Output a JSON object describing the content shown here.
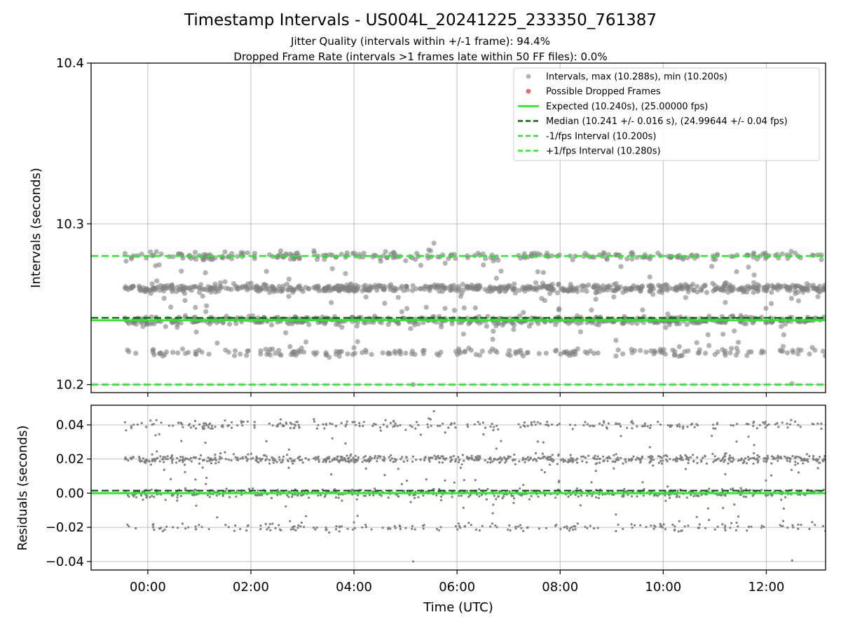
{
  "figure": {
    "title": "Timestamp Intervals - US004L_20241225_233350_761387",
    "subtitle_lines": [
      "Jitter Quality (intervals within +/-1 frame): 94.4%",
      "Dropped Frame Rate (intervals >1 frames late within 50 FF files): 0.0%"
    ],
    "xlabel": "Time (UTC)"
  },
  "colors": {
    "points": "#808080",
    "dropped": "#e8686b",
    "expected": "#22ee22",
    "median": "#006400",
    "bound": "#22ee22",
    "grid": "#b0b0b0"
  },
  "chart_data": [
    {
      "type": "scatter",
      "panel": "top",
      "ylabel": "Intervals (seconds)",
      "ylim": [
        10.195,
        10.4
      ],
      "yticks": [
        10.2,
        10.3,
        10.4
      ],
      "ytick_labels": [
        "10.2",
        "10.3",
        "10.4"
      ],
      "x_range_hours": [
        -1.1,
        13.15
      ],
      "xticks_hours": [
        0,
        2,
        4,
        6,
        8,
        10,
        12
      ],
      "xtick_labels": [
        "00:00",
        "02:00",
        "04:00",
        "06:00",
        "08:00",
        "10:00",
        "12:00"
      ],
      "grid": true,
      "legend_position": "top-right",
      "series_summary": {
        "start_hour": -0.45,
        "end_hour": 13.15,
        "levels": [
          10.22,
          10.24,
          10.26,
          10.28
        ],
        "max": 10.288,
        "min": 10.2
      },
      "reference_lines": [
        {
          "name": "Expected (10.240s), (25.00000 fps)",
          "y": 10.24,
          "style": "solid"
        },
        {
          "name": "Median (10.241 +/- 0.016 s), (24.99644 +/- 0.04 fps)",
          "y": 10.2415,
          "style": "dashed-dark"
        },
        {
          "name": "-1/fps Interval (10.200s)",
          "y": 10.2,
          "style": "dashed"
        },
        {
          "name": "+1/fps Interval (10.280s)",
          "y": 10.28,
          "style": "dashed"
        }
      ],
      "legend": [
        {
          "label": "Intervals, max (10.288s), min (10.200s)",
          "kind": "point-grey"
        },
        {
          "label": "Possible Dropped Frames",
          "kind": "point-red"
        },
        {
          "label": "Expected (10.240s), (25.00000 fps)",
          "kind": "line-green"
        },
        {
          "label": "Median (10.241 +/- 0.016 s), (24.99644 +/- 0.04 fps)",
          "kind": "line-median"
        },
        {
          "label": "-1/fps Interval (10.200s)",
          "kind": "line-dashed-green"
        },
        {
          "label": "+1/fps Interval (10.280s)",
          "kind": "line-dashed-green"
        }
      ]
    },
    {
      "type": "scatter",
      "panel": "bottom",
      "ylabel": "Residuals (seconds)",
      "ylim": [
        -0.045,
        0.0515
      ],
      "yticks": [
        0.04,
        0.02,
        0.0,
        -0.02,
        -0.04
      ],
      "ytick_labels": [
        "0.04",
        "0.02",
        "0.00",
        "−0.02",
        "−0.04"
      ],
      "x_range_hours": [
        -1.1,
        13.15
      ],
      "xticks_hours": [
        0,
        2,
        4,
        6,
        8,
        10,
        12
      ],
      "xtick_labels": [
        "00:00",
        "02:00",
        "04:00",
        "06:00",
        "08:00",
        "10:00",
        "12:00"
      ],
      "grid": true,
      "series_summary": {
        "levels": [
          -0.02,
          0.0,
          0.02,
          0.04
        ],
        "max": 0.048,
        "min": -0.04
      },
      "reference_lines": [
        {
          "name": "zero",
          "y": 0.0,
          "style": "solid"
        },
        {
          "name": "median offset",
          "y": 0.0015,
          "style": "dashed-dark"
        }
      ]
    }
  ]
}
